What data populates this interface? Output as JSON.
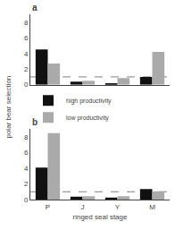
{
  "chart_data": [
    {
      "type": "bar",
      "annotation": "a",
      "ylabel": "polar bear selection",
      "categories": [
        "P",
        "J",
        "Y",
        "M"
      ],
      "series": [
        {
          "name": "high productivity",
          "color": "#111111",
          "values": [
            4.5,
            0.4,
            0.2,
            1.0
          ]
        },
        {
          "name": "low productivity",
          "color": "#aaaaaa",
          "values": [
            2.7,
            0.5,
            0.85,
            4.2
          ]
        }
      ],
      "ylim": [
        0,
        9
      ],
      "yticks": [
        0,
        2,
        4,
        6,
        8
      ],
      "reference_line": 1.0,
      "grid": false,
      "tick_labels": "y"
    },
    {
      "type": "bar",
      "annotation": "b",
      "xlabel": "ringed seal stage",
      "categories": [
        "P",
        "J",
        "Y",
        "M"
      ],
      "series": [
        {
          "name": "high productivity",
          "color": "#111111",
          "values": [
            4.1,
            0.38,
            0.25,
            1.35
          ]
        },
        {
          "name": "low productivity",
          "color": "#aaaaaa",
          "values": [
            8.5,
            0.42,
            0.42,
            1.05
          ]
        }
      ],
      "ylim": [
        0,
        9
      ],
      "yticks": [
        0,
        2,
        4,
        6,
        8
      ],
      "reference_line": 1.0,
      "grid": false
    }
  ]
}
